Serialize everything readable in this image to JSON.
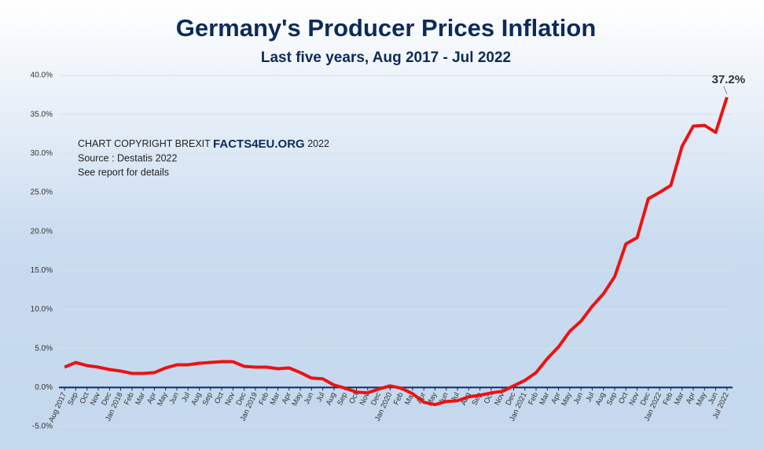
{
  "chart_data": {
    "type": "line",
    "title": "Germany's Producer Prices Inflation",
    "subtitle": "Last five years, Aug 2017 - Jul 2022",
    "notes": [
      "CHART COPYRIGHT BREXIT ",
      "FACTS4EU.ORG",
      " 2022",
      "Source : Destatis 2022",
      "See report for details"
    ],
    "categories": [
      "Aug 2017",
      "Sep",
      "Oct",
      "Nov",
      "Dec",
      "Jan 2018",
      "Feb",
      "Mar",
      "Apr",
      "May",
      "Jun",
      "Jul",
      "Aug",
      "Sep",
      "Oct",
      "Nov",
      "Dec",
      "Jan 2019",
      "Feb",
      "Mar",
      "Apr",
      "May",
      "Jun",
      "Jul",
      "Aug",
      "Sep",
      "Oct",
      "Nov",
      "Dec",
      "Jan 2020",
      "Feb",
      "Mar",
      "Apr",
      "May",
      "Jun",
      "Jul",
      "Aug",
      "Sep",
      "Oct",
      "Nov",
      "Dec",
      "Jan 2021",
      "Feb",
      "Mar",
      "Apr",
      "May",
      "Jun",
      "Jul",
      "Aug",
      "Sep",
      "Oct",
      "Nov",
      "Dec",
      "Jan 2022",
      "Feb",
      "Mar",
      "Apr",
      "May",
      "Jun",
      "Jul 2022"
    ],
    "series": [
      {
        "color": "#ee1111",
        "values": [
          2.6,
          3.2,
          2.8,
          2.6,
          2.3,
          2.1,
          1.8,
          1.8,
          1.9,
          2.5,
          2.9,
          2.9,
          3.1,
          3.2,
          3.3,
          3.3,
          2.7,
          2.6,
          2.6,
          2.4,
          2.5,
          1.9,
          1.2,
          1.1,
          0.3,
          -0.1,
          -0.6,
          -0.7,
          -0.2,
          0.2,
          -0.1,
          -0.8,
          -1.9,
          -2.2,
          -1.8,
          -1.7,
          -1.2,
          -1.0,
          -0.7,
          -0.5,
          0.2,
          0.9,
          1.9,
          3.7,
          5.2,
          7.2,
          8.5,
          10.4,
          12.0,
          14.2,
          18.4,
          19.2,
          24.2,
          25.0,
          25.9,
          30.9,
          33.5,
          33.6,
          32.7,
          37.2
        ],
        "value_labels": [
          null,
          null,
          null,
          null,
          null,
          null,
          null,
          null,
          null,
          null,
          null,
          null,
          null,
          null,
          null,
          null,
          null,
          null,
          null,
          null,
          null,
          null,
          null,
          null,
          null,
          null,
          null,
          null,
          null,
          null,
          null,
          null,
          null,
          null,
          null,
          null,
          null,
          null,
          null,
          null,
          null,
          null,
          null,
          null,
          null,
          null,
          null,
          null,
          null,
          null,
          null,
          null,
          null,
          null,
          null,
          null,
          null,
          null,
          null,
          "37.2%"
        ]
      }
    ],
    "ylim": [
      -5,
      40
    ],
    "yticks": [
      {
        "value": -5,
        "label": "-5.0%"
      },
      {
        "value": 0,
        "label": "0.0%"
      },
      {
        "value": 5,
        "label": "5.0%"
      },
      {
        "value": 10,
        "label": "10.0%"
      },
      {
        "value": 15,
        "label": "15.0%"
      },
      {
        "value": 20,
        "label": "20.0%"
      },
      {
        "value": 25,
        "label": "25.0%"
      },
      {
        "value": 30,
        "label": "30.0%"
      },
      {
        "value": 35,
        "label": "35.0%"
      },
      {
        "value": 40,
        "label": "40.0%"
      }
    ],
    "grid": true
  }
}
